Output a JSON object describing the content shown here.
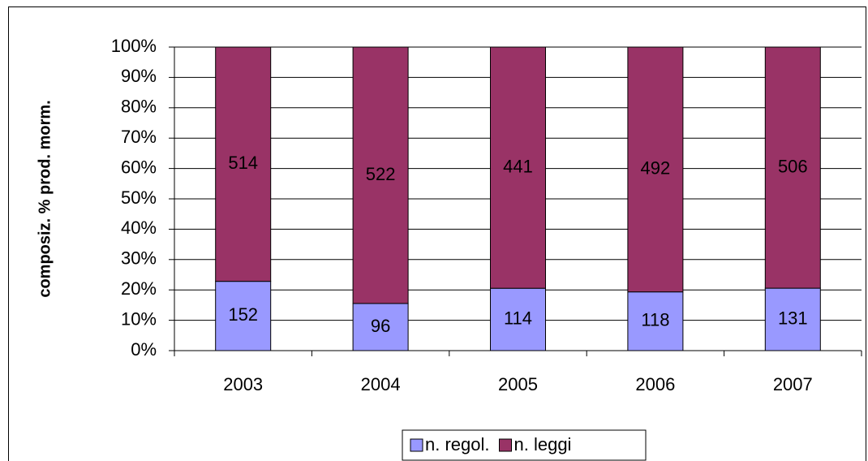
{
  "chart_data": {
    "type": "bar",
    "stacking": "percent",
    "ylabel": "composiz. % prod. morm.",
    "categories": [
      "2003",
      "2004",
      "2005",
      "2006",
      "2007"
    ],
    "series": [
      {
        "name": "n. regol.",
        "color": "#9999ff",
        "values": [
          152,
          96,
          114,
          118,
          131
        ]
      },
      {
        "name": "n. leggi",
        "color": "#993366",
        "values": [
          514,
          522,
          441,
          492,
          506
        ]
      }
    ],
    "ylim": [
      0,
      100
    ],
    "yticks": [
      {
        "value": 0,
        "label": "0%"
      },
      {
        "value": 10,
        "label": "10%"
      },
      {
        "value": 20,
        "label": "20%"
      },
      {
        "value": 30,
        "label": "30%"
      },
      {
        "value": 40,
        "label": "40%"
      },
      {
        "value": 50,
        "label": "50%"
      },
      {
        "value": 60,
        "label": "60%"
      },
      {
        "value": 70,
        "label": "70%"
      },
      {
        "value": 80,
        "label": "80%"
      },
      {
        "value": 90,
        "label": "90%"
      },
      {
        "value": 100,
        "label": "100%"
      }
    ],
    "grid": true,
    "legend": "bottom"
  }
}
